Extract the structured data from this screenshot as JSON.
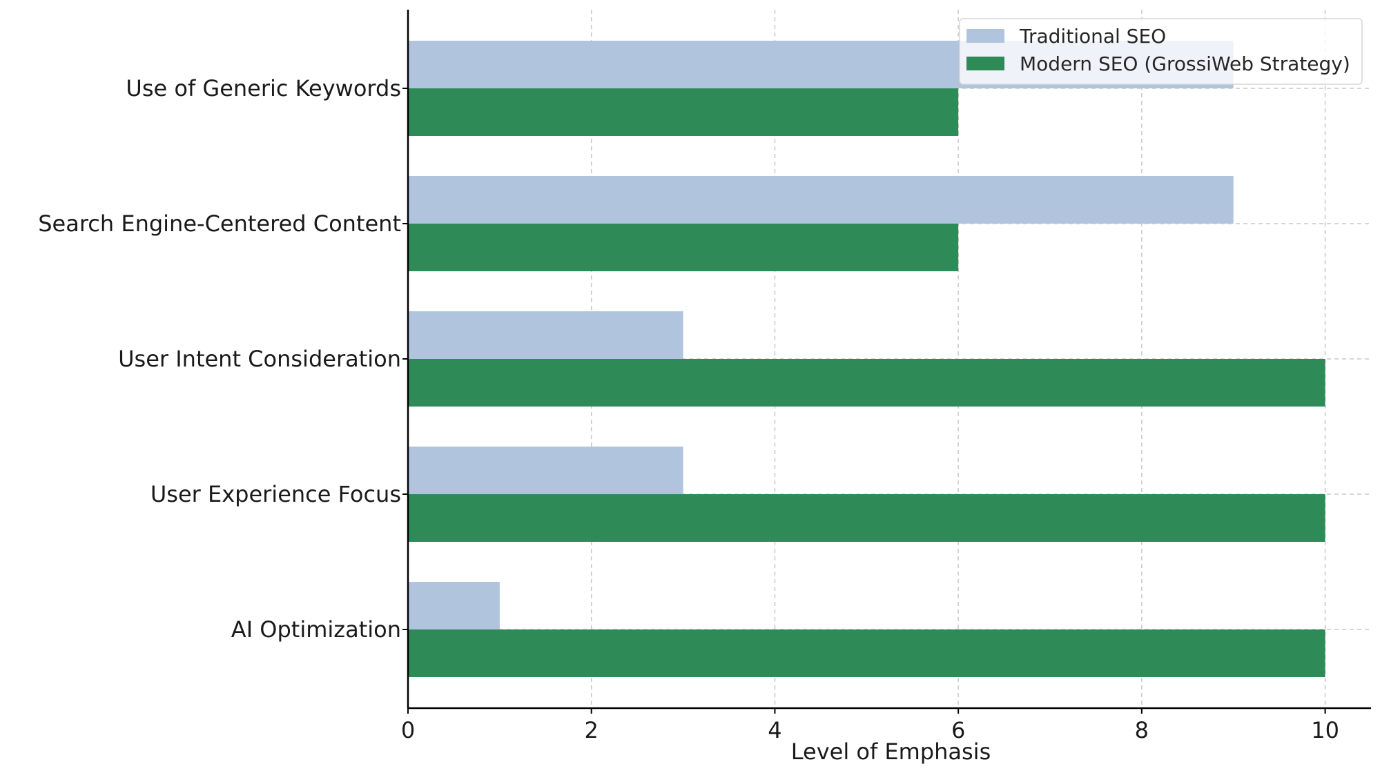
{
  "chart_data": {
    "type": "bar",
    "orientation": "horizontal",
    "categories": [
      "Use of Generic Keywords",
      "Search Engine-Centered Content",
      "User Intent Consideration",
      "User Experience Focus",
      "AI Optimization"
    ],
    "series": [
      {
        "name": "Traditional SEO",
        "values": [
          9,
          9,
          3,
          3,
          1
        ],
        "color": "#b0c4de"
      },
      {
        "name": "Modern SEO (GrossiWeb Strategy)",
        "values": [
          6,
          6,
          10,
          10,
          10
        ],
        "color": "#2e8b57"
      }
    ],
    "title": "",
    "xlabel": "Level of Emphasis",
    "ylabel": "",
    "xlim": [
      0,
      10.5
    ],
    "xticks": [
      "0",
      "2",
      "4",
      "6",
      "8",
      "10"
    ],
    "grid": true,
    "legend_position": "top-right"
  }
}
